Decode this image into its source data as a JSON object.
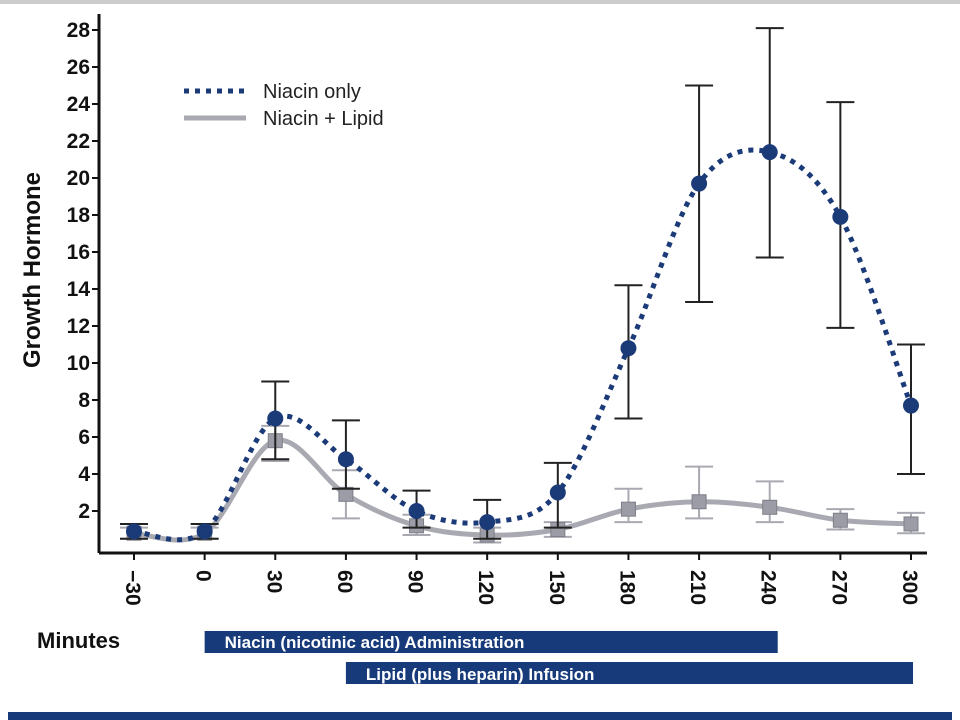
{
  "colors": {
    "niacin_only": "#1b3a78",
    "niacin_lipid": "#a9a9b2",
    "error_bar_dark": "#222222",
    "error_bar_light": "#a9a9b2",
    "band": "#173a7a",
    "axis": "#111111"
  },
  "chart_data": {
    "type": "line",
    "title": "",
    "ylabel": "Growth Hormone",
    "xlabel": "Minutes",
    "ylim": [
      0,
      28
    ],
    "xlim": [
      -30,
      300
    ],
    "yticks": [
      "2",
      "4",
      "6",
      "8",
      "10",
      "12",
      "14",
      "16",
      "18",
      "20",
      "22",
      "24",
      "26",
      "28"
    ],
    "xticks": [
      "−30",
      "0",
      "30",
      "60",
      "90",
      "120",
      "150",
      "180",
      "210",
      "240",
      "270",
      "300"
    ],
    "legend_position": "top-left",
    "grid": false,
    "series": [
      {
        "name": "Niacin only",
        "style": "dotted",
        "marker": "circle",
        "x": [
          -30,
          0,
          30,
          60,
          90,
          120,
          150,
          180,
          210,
          240,
          270,
          300
        ],
        "y": [
          0.9,
          0.9,
          7.0,
          4.8,
          2.0,
          1.4,
          3.0,
          10.8,
          19.7,
          21.4,
          17.9,
          7.7
        ],
        "err_low": [
          0.4,
          0.4,
          2.2,
          1.6,
          0.9,
          0.9,
          1.9,
          3.8,
          6.4,
          5.7,
          6.0,
          3.7
        ],
        "err_high": [
          0.4,
          0.4,
          2.0,
          2.1,
          1.1,
          1.2,
          1.6,
          3.4,
          5.3,
          6.7,
          6.2,
          3.3
        ]
      },
      {
        "name": "Niacin + Lipid",
        "style": "solid",
        "marker": "square",
        "x": [
          -30,
          0,
          30,
          60,
          90,
          120,
          150,
          180,
          210,
          240,
          270,
          300
        ],
        "y": [
          0.8,
          0.8,
          5.8,
          2.9,
          1.2,
          0.7,
          1.0,
          2.1,
          2.5,
          2.2,
          1.5,
          1.3
        ],
        "err_low": [
          0.3,
          0.3,
          1.1,
          1.3,
          0.5,
          0.4,
          0.4,
          0.7,
          0.9,
          0.8,
          0.5,
          0.5
        ],
        "err_high": [
          0.3,
          0.3,
          0.8,
          1.3,
          0.6,
          0.4,
          0.4,
          1.1,
          1.9,
          1.4,
          0.6,
          0.6
        ]
      }
    ],
    "bands": [
      {
        "label": "Niacin (nicotinic acid) Administration",
        "start": 0,
        "end": 240
      },
      {
        "label": "Lipid (plus heparin) Infusion",
        "start": 60,
        "end": 300
      }
    ]
  }
}
